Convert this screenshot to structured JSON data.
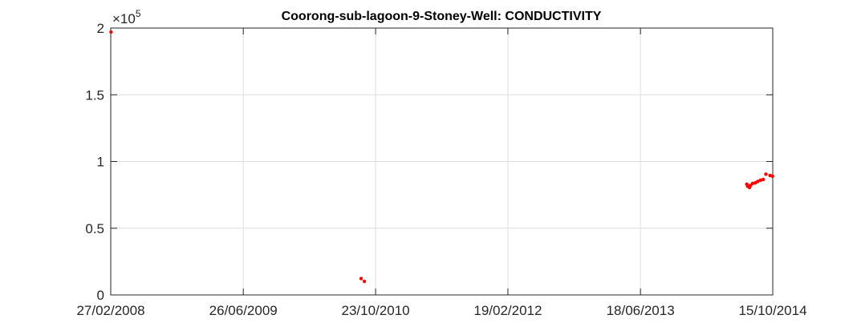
{
  "chart_data": {
    "type": "scatter",
    "title": "Coorong-sub-lagoon-9-Stoney-Well: CONDUCTIVITY",
    "xlabel": "",
    "ylabel": "",
    "y_exponent_label": {
      "base": "×10",
      "power": "5"
    },
    "xlim": [
      "2008-02-27",
      "2014-10-15"
    ],
    "ylim": [
      0,
      200000
    ],
    "grid": true,
    "marker_color": "#ff0000",
    "x_ticks": [
      {
        "date": "2008-02-27",
        "label": "27/02/2008"
      },
      {
        "date": "2009-06-26",
        "label": "26/06/2009"
      },
      {
        "date": "2010-10-23",
        "label": "23/10/2010"
      },
      {
        "date": "2012-02-19",
        "label": "19/02/2012"
      },
      {
        "date": "2013-06-18",
        "label": "18/06/2013"
      },
      {
        "date": "2014-10-15",
        "label": "15/10/2014"
      }
    ],
    "y_ticks": [
      {
        "value": 0,
        "label": "0"
      },
      {
        "value": 50000,
        "label": "0.5"
      },
      {
        "value": 100000,
        "label": "1"
      },
      {
        "value": 150000,
        "label": "1.5"
      },
      {
        "value": 200000,
        "label": "2"
      }
    ],
    "series": [
      {
        "points": [
          {
            "x": "2008-02-28",
            "y": 197000
          },
          {
            "x": "2010-08-31",
            "y": 12300
          },
          {
            "x": "2010-09-12",
            "y": 10200
          },
          {
            "x": "2014-07-12",
            "y": 83000
          },
          {
            "x": "2014-07-15",
            "y": 81500
          },
          {
            "x": "2014-07-22",
            "y": 80500
          },
          {
            "x": "2014-07-25",
            "y": 82000
          },
          {
            "x": "2014-08-02",
            "y": 83500
          },
          {
            "x": "2014-08-12",
            "y": 84000
          },
          {
            "x": "2014-08-21",
            "y": 85000
          },
          {
            "x": "2014-08-31",
            "y": 86000
          },
          {
            "x": "2014-09-10",
            "y": 86500
          },
          {
            "x": "2014-09-20",
            "y": 90500
          },
          {
            "x": "2014-10-05",
            "y": 89500
          },
          {
            "x": "2014-10-14",
            "y": 89000
          }
        ]
      }
    ]
  }
}
